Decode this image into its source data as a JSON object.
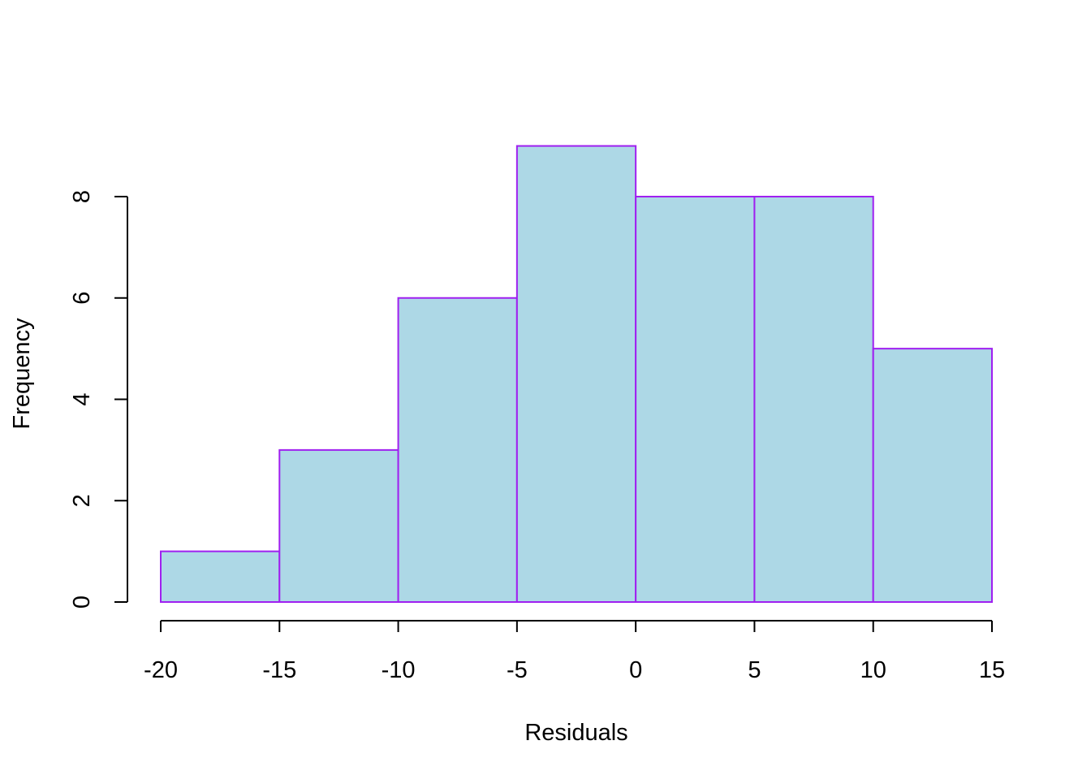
{
  "chart_data": {
    "type": "bar",
    "subtype": "histogram",
    "title": "",
    "xlabel": "Residuals",
    "ylabel": "Frequency",
    "bins": [
      {
        "from": -20,
        "to": -15,
        "count": 1
      },
      {
        "from": -15,
        "to": -10,
        "count": 3
      },
      {
        "from": -10,
        "to": -5,
        "count": 6
      },
      {
        "from": -5,
        "to": 0,
        "count": 9
      },
      {
        "from": 0,
        "to": 5,
        "count": 8
      },
      {
        "from": 5,
        "to": 10,
        "count": 8
      },
      {
        "from": 10,
        "to": 15,
        "count": 5
      }
    ],
    "x_ticks": [
      -20,
      -15,
      -10,
      -5,
      0,
      5,
      10,
      15
    ],
    "y_ticks": [
      0,
      2,
      4,
      6,
      8
    ],
    "xlim": [
      -20,
      15
    ],
    "ylim": [
      0,
      9
    ],
    "grid": false,
    "legend": "none",
    "colors": {
      "fill": "#add8e6",
      "border": "#a020f0"
    }
  }
}
